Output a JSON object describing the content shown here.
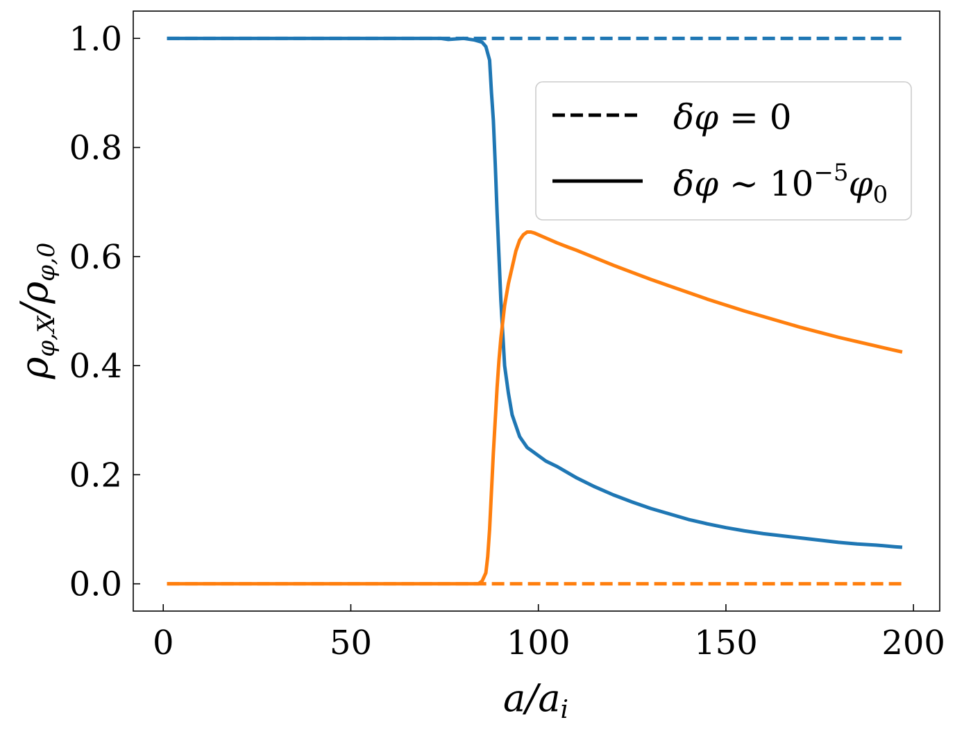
{
  "chart_data": {
    "type": "line",
    "xlabel": "a/a_i",
    "ylabel": "ρ_{φ,X}/ρ_{φ,0}",
    "xlim": [
      -8,
      207
    ],
    "ylim": [
      -0.05,
      1.05
    ],
    "xticks": [
      0,
      50,
      100,
      150,
      200
    ],
    "yticks": [
      0.0,
      0.2,
      0.4,
      0.6,
      0.8,
      1.0
    ],
    "xtick_labels": [
      "0",
      "50",
      "100",
      "150",
      "200"
    ],
    "ytick_labels": [
      "0.0",
      "0.2",
      "0.4",
      "0.6",
      "0.8",
      "1.0"
    ],
    "grid": false,
    "legend_position": "upper right",
    "legend": [
      {
        "label": "δφ = 0",
        "linestyle": "dashed",
        "color": "#000000"
      },
      {
        "label": "δφ ∼ 10⁻⁵φ₀",
        "linestyle": "solid",
        "color": "#000000"
      }
    ],
    "series": [
      {
        "color": "#1f77b4",
        "linestyle": "dashed",
        "x": [
          1,
          197
        ],
        "y": [
          1.0,
          1.0
        ]
      },
      {
        "color": "#ff7f0e",
        "linestyle": "dashed",
        "x": [
          1,
          197
        ],
        "y": [
          0.0,
          0.0
        ]
      },
      {
        "color": "#1f77b4",
        "linestyle": "solid",
        "x": [
          1,
          20,
          40,
          60,
          70,
          74,
          76,
          80,
          83,
          85,
          86,
          87,
          87.5,
          88,
          88.5,
          89,
          89.5,
          90,
          90.5,
          91,
          92,
          93,
          94,
          95,
          96,
          97,
          98,
          100,
          102,
          105,
          110,
          115,
          120,
          125,
          130,
          135,
          140,
          145,
          150,
          155,
          160,
          165,
          170,
          175,
          180,
          185,
          190,
          195,
          197
        ],
        "y": [
          1.0,
          1.0,
          1.0,
          1.0,
          1.0,
          1.0,
          0.998,
          1.0,
          0.997,
          0.993,
          0.985,
          0.96,
          0.9,
          0.85,
          0.77,
          0.68,
          0.6,
          0.52,
          0.46,
          0.4,
          0.35,
          0.31,
          0.29,
          0.27,
          0.26,
          0.25,
          0.245,
          0.235,
          0.225,
          0.215,
          0.195,
          0.178,
          0.163,
          0.15,
          0.138,
          0.128,
          0.118,
          0.11,
          0.103,
          0.097,
          0.092,
          0.088,
          0.084,
          0.08,
          0.076,
          0.073,
          0.071,
          0.068,
          0.067
        ]
      },
      {
        "color": "#ff7f0e",
        "linestyle": "solid",
        "x": [
          1,
          20,
          40,
          60,
          80,
          84,
          85,
          86,
          86.5,
          87,
          87.5,
          88,
          88.5,
          89,
          89.5,
          90,
          90.5,
          91,
          92,
          93,
          94,
          95,
          96,
          97,
          98,
          99,
          100,
          102,
          105,
          108,
          110,
          115,
          120,
          125,
          130,
          135,
          140,
          145,
          150,
          155,
          160,
          165,
          170,
          175,
          180,
          185,
          190,
          195,
          197
        ],
        "y": [
          0.0,
          0.0,
          0.0,
          0.0,
          0.0,
          0.0,
          0.005,
          0.02,
          0.05,
          0.1,
          0.17,
          0.24,
          0.3,
          0.36,
          0.41,
          0.45,
          0.48,
          0.51,
          0.55,
          0.58,
          0.61,
          0.63,
          0.64,
          0.645,
          0.645,
          0.643,
          0.64,
          0.634,
          0.625,
          0.617,
          0.612,
          0.598,
          0.584,
          0.571,
          0.558,
          0.546,
          0.534,
          0.522,
          0.511,
          0.5,
          0.49,
          0.48,
          0.47,
          0.461,
          0.452,
          0.444,
          0.436,
          0.428,
          0.425
        ]
      }
    ]
  }
}
